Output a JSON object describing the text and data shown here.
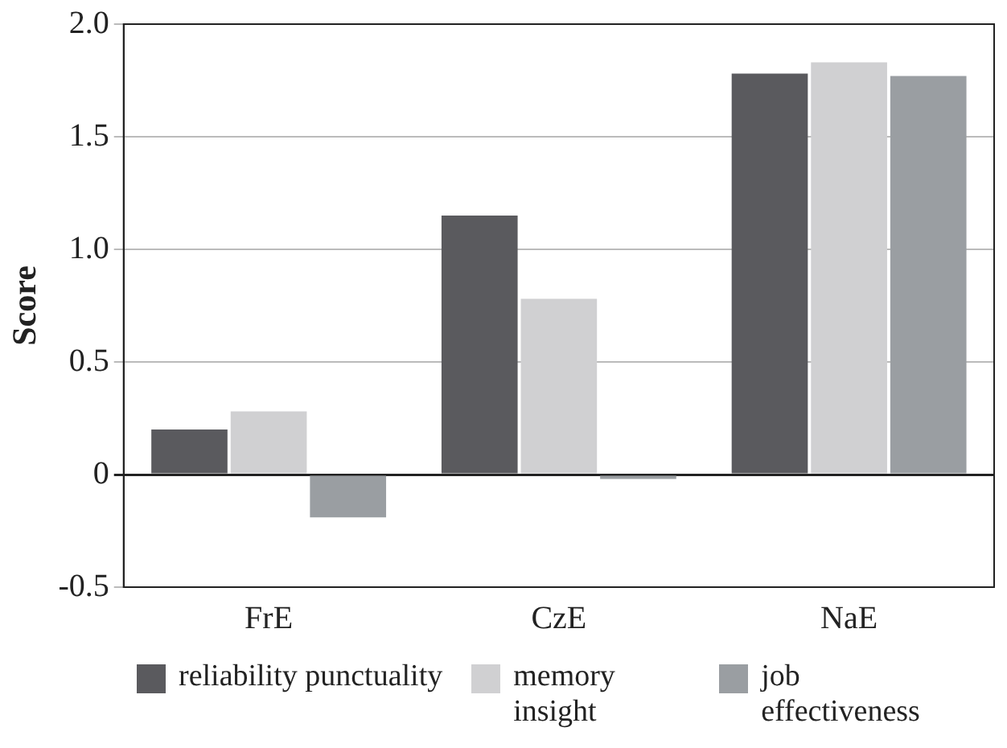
{
  "chart_data": {
    "type": "bar",
    "ylabel": "Score",
    "categories": [
      "FrE",
      "CzE",
      "NaE"
    ],
    "series": [
      {
        "name": "reliability punctuality",
        "color": "#5a5a5e",
        "values": [
          0.2,
          1.15,
          1.78
        ]
      },
      {
        "name": "memory insight",
        "color": "#d0d0d2",
        "values": [
          0.28,
          0.78,
          1.83
        ]
      },
      {
        "name": "job effectiveness",
        "color": "#9a9ea2",
        "values": [
          -0.19,
          -0.02,
          1.77
        ]
      }
    ],
    "ylim": [
      -0.5,
      2
    ],
    "yticks": [
      {
        "value": -0.5,
        "label": "-0.5"
      },
      0,
      0.5,
      {
        "value": 1,
        "label": "1.0"
      },
      1.5,
      {
        "value": 2,
        "label": "2.0"
      }
    ],
    "grid": "y",
    "legend": "bottom"
  }
}
